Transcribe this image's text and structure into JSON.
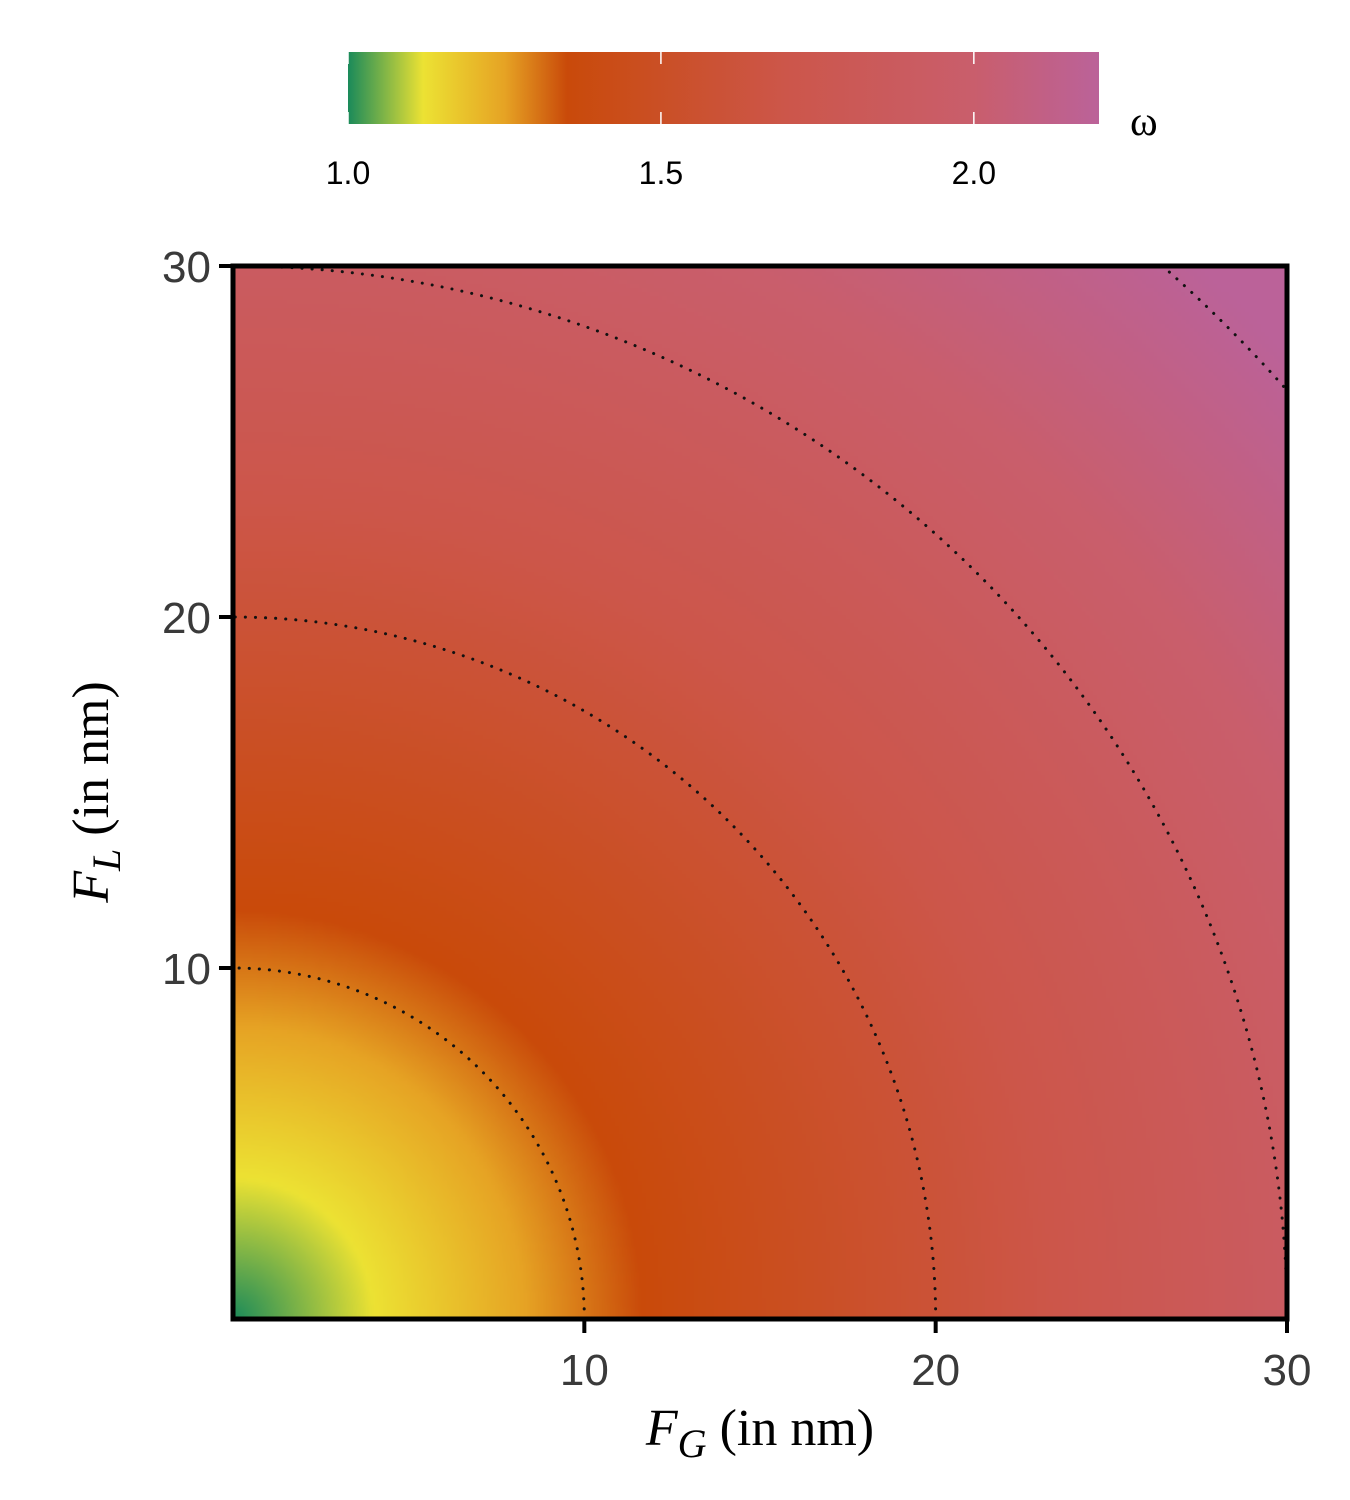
{
  "chart_data": {
    "type": "heatmap",
    "x": {
      "var": "F",
      "sub": "G",
      "unit": " (in nm)",
      "range": [
        0,
        30
      ],
      "ticks": [
        "10",
        "20",
        "30"
      ]
    },
    "y": {
      "var": "F",
      "sub": "L",
      "unit": " (in nm)",
      "range": [
        0,
        30
      ],
      "ticks": [
        "10",
        "20",
        "30"
      ]
    },
    "value_name": "ω",
    "value_range": [
      1.0,
      2.2
    ],
    "colorbar": {
      "placement": "top",
      "ticks": [
        "1.0",
        "1.5",
        "2.0"
      ],
      "stops": [
        {
          "value": 1.0,
          "color": "#1a8a5a"
        },
        {
          "value": 1.12,
          "color": "#ece233"
        },
        {
          "value": 1.25,
          "color": "#e6a324"
        },
        {
          "value": 1.35,
          "color": "#c94a0a"
        },
        {
          "value": 1.7,
          "color": "#cc564a"
        },
        {
          "value": 2.0,
          "color": "#c95e6c"
        },
        {
          "value": 2.22,
          "color": "#bb6299"
        }
      ]
    },
    "contours": {
      "style": "dotted",
      "radii": [
        10,
        20,
        30,
        40
      ]
    },
    "model": "omega = 1 + 0.03 * sqrt(F_G^2 + F_L^2)",
    "grid": false
  }
}
